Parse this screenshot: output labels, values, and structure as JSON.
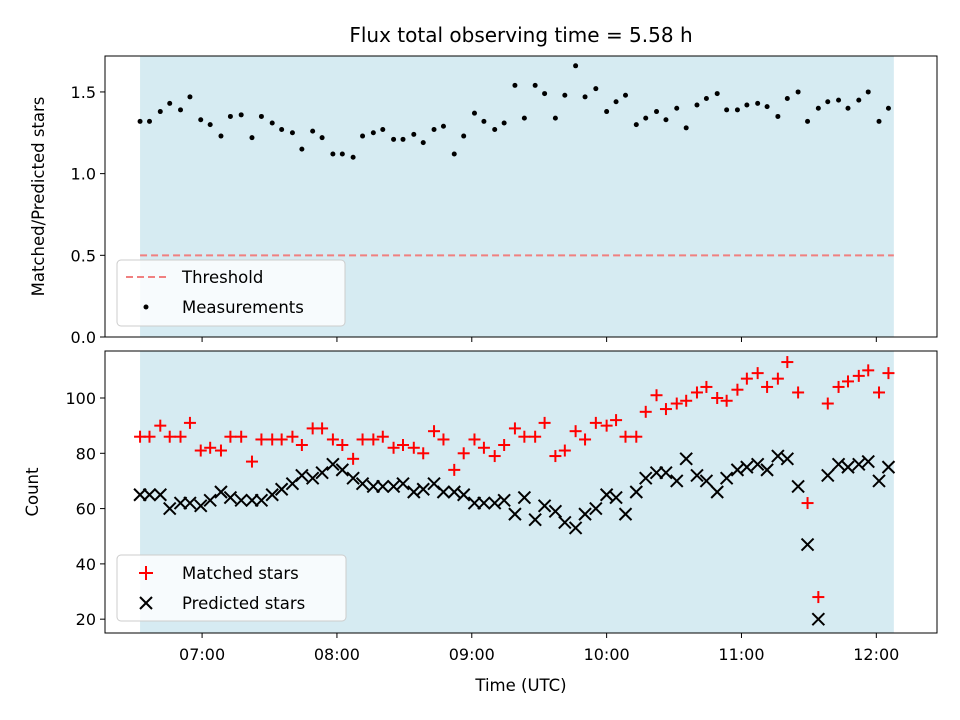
{
  "chart_data": [
    {
      "type": "scatter",
      "title": "Flux total observing time = 5.58 h",
      "xlabel": "",
      "ylabel": "Matched/Predicted stars",
      "ylim": [
        0,
        1.72
      ],
      "yticks": [
        0.0,
        0.5,
        1.0,
        1.5
      ],
      "ytick_labels": [
        "0.0",
        "0.5",
        "1.0",
        "1.5"
      ],
      "xlim_hours": [
        6.28,
        12.45
      ],
      "shaded_span_hours": [
        6.54,
        12.13
      ],
      "shade_color": "#add8e6",
      "threshold": {
        "name": "Threshold",
        "value": 0.5,
        "color": "#f08080",
        "style": "dashed"
      },
      "legend": {
        "placement": "lower-left",
        "entries": [
          "Threshold",
          "Measurements"
        ]
      },
      "series": [
        {
          "name": "Measurements",
          "marker": "dot",
          "color": "#000000",
          "x": [
            6.54,
            6.61,
            6.69,
            6.76,
            6.84,
            6.91,
            6.99,
            7.06,
            7.14,
            7.21,
            7.29,
            7.37,
            7.44,
            7.52,
            7.59,
            7.67,
            7.74,
            7.82,
            7.89,
            7.97,
            8.04,
            8.12,
            8.19,
            8.27,
            8.34,
            8.42,
            8.49,
            8.57,
            8.64,
            8.72,
            8.79,
            8.87,
            8.94,
            9.02,
            9.09,
            9.17,
            9.24,
            9.32,
            9.39,
            9.47,
            9.54,
            9.62,
            9.69,
            9.77,
            9.84,
            9.92,
            10.0,
            10.07,
            10.14,
            10.22,
            10.29,
            10.37,
            10.44,
            10.52,
            10.59,
            10.67,
            10.74,
            10.82,
            10.89,
            10.97,
            11.04,
            11.12,
            11.19,
            11.27,
            11.34,
            11.42,
            11.49,
            11.57,
            11.64,
            11.72,
            11.79,
            11.87,
            11.94,
            12.02,
            12.09
          ],
          "y": [
            1.32,
            1.32,
            1.38,
            1.43,
            1.39,
            1.47,
            1.33,
            1.3,
            1.23,
            1.35,
            1.36,
            1.22,
            1.35,
            1.31,
            1.27,
            1.25,
            1.15,
            1.26,
            1.22,
            1.12,
            1.12,
            1.1,
            1.23,
            1.25,
            1.27,
            1.21,
            1.21,
            1.24,
            1.19,
            1.27,
            1.29,
            1.12,
            1.23,
            1.37,
            1.32,
            1.27,
            1.31,
            1.54,
            1.34,
            1.54,
            1.49,
            1.34,
            1.48,
            1.66,
            1.47,
            1.52,
            1.38,
            1.44,
            1.48,
            1.3,
            1.34,
            1.38,
            1.33,
            1.4,
            1.28,
            1.42,
            1.46,
            1.49,
            1.39,
            1.39,
            1.42,
            1.43,
            1.41,
            1.35,
            1.46,
            1.5,
            1.32,
            1.4,
            1.44,
            1.45,
            1.4,
            1.45,
            1.5,
            1.32,
            1.4
          ]
        }
      ]
    },
    {
      "type": "scatter",
      "title": "",
      "xlabel": "Time (UTC)",
      "ylabel": "Count",
      "ylim": [
        15,
        117
      ],
      "yticks": [
        20,
        40,
        60,
        80,
        100
      ],
      "ytick_labels": [
        "20",
        "40",
        "60",
        "80",
        "100"
      ],
      "xlim_hours": [
        6.28,
        12.45
      ],
      "xticks_hours": [
        7,
        8,
        9,
        10,
        11,
        12
      ],
      "xtick_labels": [
        "07:00",
        "08:00",
        "09:00",
        "10:00",
        "11:00",
        "12:00"
      ],
      "shaded_span_hours": [
        6.54,
        12.13
      ],
      "shade_color": "#add8e6",
      "legend": {
        "placement": "lower-left",
        "entries": [
          "Matched stars",
          "Predicted stars"
        ]
      },
      "series": [
        {
          "name": "Matched stars",
          "marker": "plus",
          "color": "#ff0000",
          "x": [
            6.54,
            6.61,
            6.69,
            6.76,
            6.84,
            6.91,
            6.99,
            7.06,
            7.14,
            7.21,
            7.29,
            7.37,
            7.44,
            7.52,
            7.59,
            7.67,
            7.74,
            7.82,
            7.89,
            7.97,
            8.04,
            8.12,
            8.19,
            8.27,
            8.34,
            8.42,
            8.49,
            8.57,
            8.64,
            8.72,
            8.79,
            8.87,
            8.94,
            9.02,
            9.09,
            9.17,
            9.24,
            9.32,
            9.39,
            9.47,
            9.54,
            9.62,
            9.69,
            9.77,
            9.84,
            9.92,
            10.0,
            10.07,
            10.14,
            10.22,
            10.29,
            10.37,
            10.44,
            10.52,
            10.59,
            10.67,
            10.74,
            10.82,
            10.89,
            10.97,
            11.04,
            11.12,
            11.19,
            11.27,
            11.34,
            11.42,
            11.49,
            11.57,
            11.64,
            11.72,
            11.79,
            11.87,
            11.94,
            12.02,
            12.09
          ],
          "y": [
            86,
            86,
            90,
            86,
            86,
            91,
            81,
            82,
            81,
            86,
            86,
            77,
            85,
            85,
            85,
            86,
            83,
            89,
            89,
            85,
            83,
            78,
            85,
            85,
            86,
            82,
            83,
            82,
            80,
            88,
            85,
            74,
            80,
            85,
            82,
            79,
            83,
            89,
            86,
            86,
            91,
            79,
            81,
            88,
            85,
            91,
            90,
            92,
            86,
            86,
            95,
            101,
            96,
            98,
            99,
            102,
            104,
            100,
            99,
            103,
            107,
            109,
            104,
            107,
            113,
            102,
            62,
            28,
            98,
            104,
            106,
            108,
            110,
            102,
            109
          ]
        },
        {
          "name": "Predicted stars",
          "marker": "x",
          "color": "#000000",
          "x": [
            6.54,
            6.61,
            6.69,
            6.76,
            6.84,
            6.91,
            6.99,
            7.06,
            7.14,
            7.21,
            7.29,
            7.37,
            7.44,
            7.52,
            7.59,
            7.67,
            7.74,
            7.82,
            7.89,
            7.97,
            8.04,
            8.12,
            8.19,
            8.27,
            8.34,
            8.42,
            8.49,
            8.57,
            8.64,
            8.72,
            8.79,
            8.87,
            8.94,
            9.02,
            9.09,
            9.17,
            9.24,
            9.32,
            9.39,
            9.47,
            9.54,
            9.62,
            9.69,
            9.77,
            9.84,
            9.92,
            10.0,
            10.07,
            10.14,
            10.22,
            10.29,
            10.37,
            10.44,
            10.52,
            10.59,
            10.67,
            10.74,
            10.82,
            10.89,
            10.97,
            11.04,
            11.12,
            11.19,
            11.27,
            11.34,
            11.42,
            11.49,
            11.57,
            11.64,
            11.72,
            11.79,
            11.87,
            11.94,
            12.02,
            12.09
          ],
          "y": [
            65,
            65,
            65,
            60,
            62,
            62,
            61,
            63,
            66,
            64,
            63,
            63,
            63,
            65,
            67,
            69,
            72,
            71,
            73,
            76,
            74,
            71,
            69,
            68,
            68,
            68,
            69,
            66,
            67,
            69,
            66,
            66,
            65,
            62,
            62,
            62,
            63,
            58,
            64,
            56,
            61,
            59,
            55,
            53,
            58,
            60,
            65,
            64,
            58,
            66,
            71,
            73,
            73,
            70,
            78,
            72,
            70,
            66,
            71,
            74,
            75,
            76,
            74,
            79,
            78,
            68,
            47,
            20,
            72,
            76,
            75,
            76,
            77,
            70,
            75
          ]
        }
      ]
    }
  ]
}
